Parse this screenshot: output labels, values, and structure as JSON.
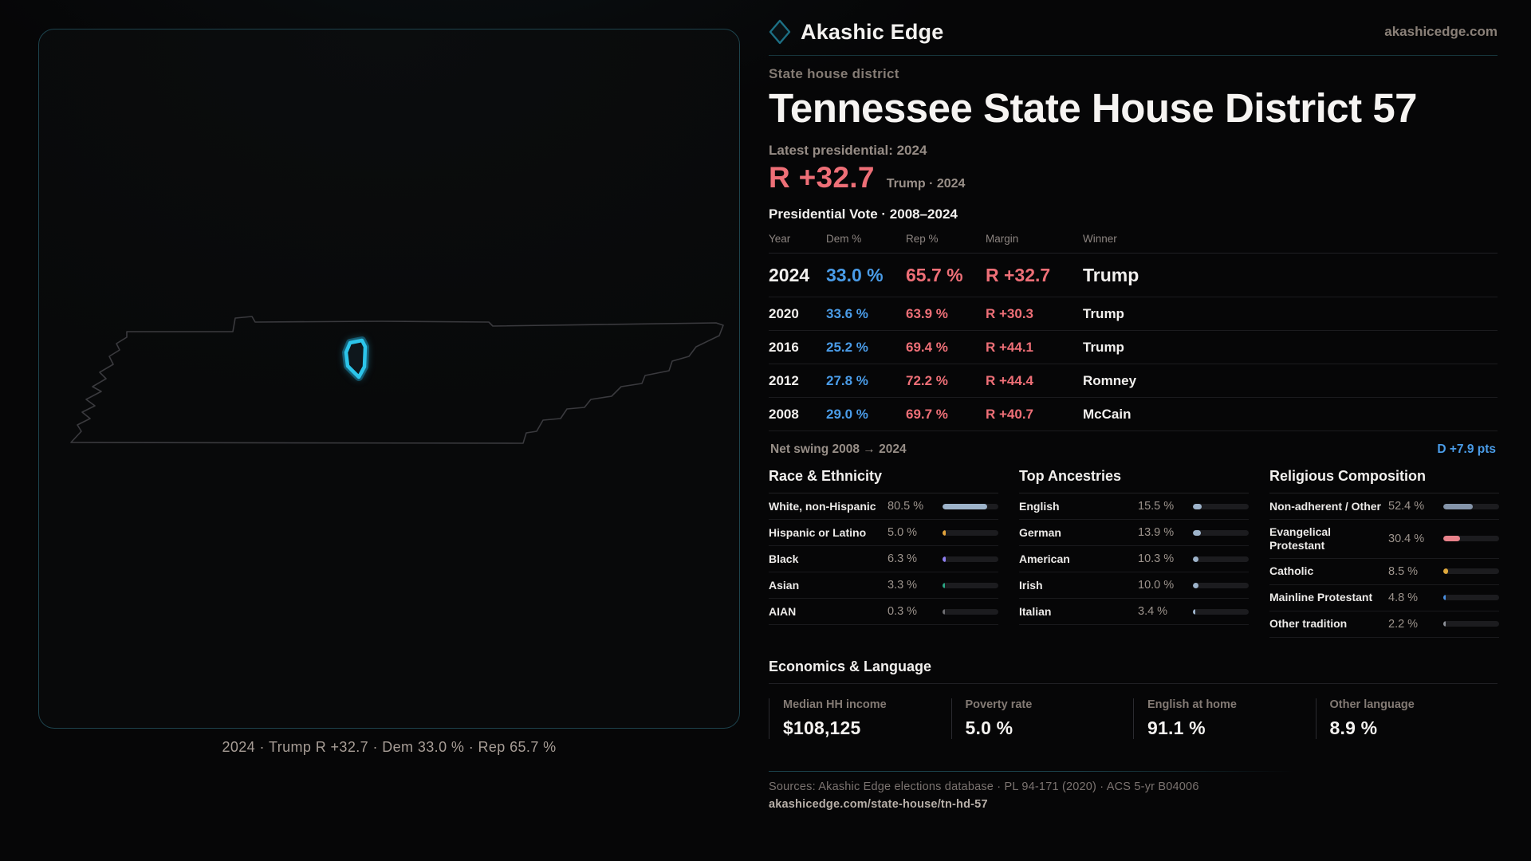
{
  "brand": {
    "name": "Akashic Edge",
    "site": "akashicedge.com"
  },
  "colors": {
    "accent": "#2cc5ea",
    "dem": "#4a9ce8",
    "rep": "#ee6f77",
    "bar_track": "#1c1c1f"
  },
  "map": {
    "caption": "2024 · Trump R +32.7 · Dem 33.0 % · Rep 65.7 %"
  },
  "header": {
    "eyebrow": "State house district",
    "title": "Tennessee State House District 57",
    "latest_label": "Latest presidential: 2024",
    "latest_margin": "R +32.7",
    "latest_detail": "Trump · 2024"
  },
  "table": {
    "title": "Presidential Vote · 2008–2024",
    "columns": [
      "Year",
      "Dem %",
      "Rep %",
      "Margin",
      "Winner"
    ],
    "rows": [
      {
        "year": "2024",
        "dem": "33.0 %",
        "rep": "65.7 %",
        "margin": "R +32.7",
        "winner": "Trump",
        "big": true
      },
      {
        "year": "2020",
        "dem": "33.6 %",
        "rep": "63.9 %",
        "margin": "R +30.3",
        "winner": "Trump",
        "big": false
      },
      {
        "year": "2016",
        "dem": "25.2 %",
        "rep": "69.4 %",
        "margin": "R +44.1",
        "winner": "Trump",
        "big": false
      },
      {
        "year": "2012",
        "dem": "27.8 %",
        "rep": "72.2 %",
        "margin": "R +44.4",
        "winner": "Romney",
        "big": false
      },
      {
        "year": "2008",
        "dem": "29.0 %",
        "rep": "69.7 %",
        "margin": "R +40.7",
        "winner": "McCain",
        "big": false
      }
    ],
    "net_swing_label": "Net swing 2008 → 2024",
    "net_swing_value": "D +7.9 pts"
  },
  "demographics": [
    {
      "title": "Race & Ethnicity",
      "rows": [
        {
          "label": "White, non-Hispanic",
          "value": "80.5 %",
          "pct": 80.5,
          "color": "#9db3ca"
        },
        {
          "label": "Hispanic or Latino",
          "value": "5.0 %",
          "pct": 5.0,
          "color": "#e2a33c"
        },
        {
          "label": "Black",
          "value": "6.3 %",
          "pct": 6.3,
          "color": "#8e7ff0"
        },
        {
          "label": "Asian",
          "value": "3.3 %",
          "pct": 3.3,
          "color": "#2aa684"
        },
        {
          "label": "AIAN",
          "value": "0.3 %",
          "pct": 0.3,
          "color": "#6e6e72"
        }
      ]
    },
    {
      "title": "Top Ancestries",
      "rows": [
        {
          "label": "English",
          "value": "15.5 %",
          "pct": 15.5,
          "color": "#9db3ca"
        },
        {
          "label": "German",
          "value": "13.9 %",
          "pct": 13.9,
          "color": "#9db3ca"
        },
        {
          "label": "American",
          "value": "10.3 %",
          "pct": 10.3,
          "color": "#9db3ca"
        },
        {
          "label": "Irish",
          "value": "10.0 %",
          "pct": 10.0,
          "color": "#9db3ca"
        },
        {
          "label": "Italian",
          "value": "3.4 %",
          "pct": 3.4,
          "color": "#9db3ca"
        }
      ]
    },
    {
      "title": "Religious Composition",
      "rows": [
        {
          "label": "Non-adherent / Other",
          "value": "52.4 %",
          "pct": 52.4,
          "color": "#8494a9"
        },
        {
          "label": "Evangelical Protestant",
          "value": "30.4 %",
          "pct": 30.4,
          "color": "#e8828a"
        },
        {
          "label": "Catholic",
          "value": "8.5 %",
          "pct": 8.5,
          "color": "#e0a93c"
        },
        {
          "label": "Mainline Protestant",
          "value": "4.8 %",
          "pct": 4.8,
          "color": "#4a8fe0"
        },
        {
          "label": "Other tradition",
          "value": "2.2 %",
          "pct": 2.2,
          "color": "#8d9199"
        }
      ]
    }
  ],
  "economics": {
    "title": "Economics & Language",
    "stats": [
      {
        "label": "Median HH income",
        "value": "$108,125"
      },
      {
        "label": "Poverty rate",
        "value": "5.0 %"
      },
      {
        "label": "English at home",
        "value": "91.1 %"
      },
      {
        "label": "Other language",
        "value": "8.9 %"
      }
    ]
  },
  "footer": {
    "sources": "Sources: Akashic Edge elections database · PL 94-171 (2020) · ACS 5-yr B04006",
    "permalink": "akashicedge.com/state-house/tn-hd-57"
  }
}
